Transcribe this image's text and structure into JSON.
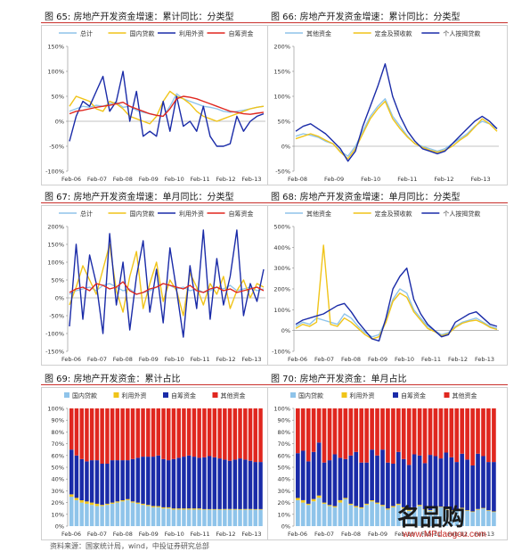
{
  "source": "资料来源：国家统计局，wind，中投证券研究总部",
  "watermark": {
    "brand": "名品购",
    "url": "www.MPdaogou.com"
  },
  "figures": [
    {
      "label": "图 65: 房地产开发资金增速：累计同比：分类型"
    },
    {
      "label": "图 66: 房地产开发资金增速：累计同比：分类型"
    },
    {
      "label": "图 67: 房地产开发资金增速：单月同比：分类型"
    },
    {
      "label": "图 68: 房地产开发资金增速：单月同比：分类型"
    },
    {
      "label": "图 69: 房地产开发资金：累计占比"
    },
    {
      "label": "图 70: 房地产开发资金：单月占比"
    }
  ],
  "chart_data": [
    {
      "type": "line",
      "title": "",
      "x_ticks": [
        "Feb-06",
        "Feb-07",
        "Feb-08",
        "Feb-09",
        "Feb-10",
        "Feb-11",
        "Feb-12",
        "Feb-13"
      ],
      "y_ticks": [
        -100,
        -50,
        0,
        50,
        100,
        150
      ],
      "ylim": [
        -100,
        150
      ],
      "legend_position": "top",
      "colors": [
        "#8fc4ea",
        "#f0c419",
        "#1a2ba8",
        "#e0271f"
      ],
      "series": [
        {
          "name": "总计",
          "values": [
            20,
            25,
            30,
            28,
            32,
            30,
            35,
            38,
            28,
            30,
            22,
            18,
            15,
            12,
            10,
            30,
            55,
            45,
            40,
            35,
            30,
            28,
            25,
            20,
            18,
            20,
            22,
            25,
            28,
            30
          ]
        },
        {
          "name": "国内贷款",
          "values": [
            30,
            50,
            45,
            40,
            25,
            20,
            40,
            35,
            25,
            10,
            5,
            0,
            -5,
            10,
            40,
            60,
            50,
            45,
            35,
            20,
            10,
            5,
            0,
            5,
            10,
            15,
            20,
            25,
            28,
            30
          ]
        },
        {
          "name": "利用外资",
          "values": [
            -40,
            10,
            40,
            30,
            60,
            90,
            20,
            40,
            100,
            0,
            60,
            -30,
            -20,
            -30,
            40,
            -20,
            50,
            -10,
            0,
            -20,
            30,
            -30,
            -50,
            -50,
            -45,
            10,
            -20,
            0,
            10,
            15
          ]
        },
        {
          "name": "自筹资金",
          "values": [
            15,
            20,
            22,
            25,
            28,
            30,
            32,
            35,
            38,
            30,
            25,
            20,
            15,
            12,
            10,
            25,
            45,
            50,
            48,
            45,
            40,
            35,
            30,
            25,
            20,
            18,
            15,
            14,
            16,
            18
          ]
        }
      ]
    },
    {
      "type": "line",
      "title": "",
      "x_ticks": [
        "Feb-08",
        "Feb-09",
        "Feb-10",
        "Feb-11",
        "Feb-12",
        "Feb-13"
      ],
      "y_ticks": [
        -50,
        0,
        50,
        100,
        150,
        200
      ],
      "ylim": [
        -50,
        200
      ],
      "legend_position": "top",
      "colors": [
        "#8fc4ea",
        "#f0c419",
        "#1a2ba8"
      ],
      "series": [
        {
          "name": "其他资金",
          "values": [
            20,
            25,
            22,
            18,
            10,
            5,
            -10,
            -20,
            0,
            30,
            60,
            80,
            95,
            60,
            40,
            20,
            5,
            0,
            -5,
            -10,
            -5,
            5,
            15,
            25,
            40,
            50,
            45,
            35
          ]
        },
        {
          "name": "定金及预收款",
          "values": [
            15,
            20,
            25,
            20,
            12,
            5,
            -12,
            -25,
            -5,
            25,
            55,
            75,
            90,
            55,
            35,
            18,
            5,
            -2,
            -8,
            -12,
            -8,
            0,
            12,
            22,
            38,
            55,
            45,
            30
          ]
        },
        {
          "name": "个人按揭贷款",
          "values": [
            30,
            40,
            45,
            35,
            25,
            10,
            -5,
            -30,
            -10,
            40,
            80,
            120,
            165,
            100,
            60,
            30,
            10,
            -5,
            -10,
            -15,
            -10,
            5,
            20,
            35,
            50,
            60,
            50,
            35
          ]
        }
      ]
    },
    {
      "type": "line",
      "title": "",
      "x_ticks": [
        "Feb-06",
        "Feb-07",
        "Feb-08",
        "Feb-09",
        "Feb-10",
        "Feb-11",
        "Feb-12",
        "Feb-13"
      ],
      "y_ticks": [
        -150,
        -100,
        -50,
        0,
        50,
        100,
        150,
        200
      ],
      "ylim": [
        -150,
        200
      ],
      "legend_position": "top",
      "colors": [
        "#8fc4ea",
        "#f0c419",
        "#1a2ba8",
        "#e0271f"
      ],
      "series": [
        {
          "name": "总计",
          "values": [
            10,
            20,
            25,
            30,
            20,
            35,
            40,
            30,
            20,
            25,
            10,
            15,
            20,
            30,
            40,
            35,
            25,
            30,
            20,
            25,
            15,
            20,
            30,
            25,
            35,
            20,
            25,
            30,
            20,
            25
          ]
        },
        {
          "name": "国内贷款",
          "values": [
            -20,
            30,
            90,
            50,
            10,
            80,
            150,
            20,
            -40,
            60,
            130,
            -30,
            40,
            100,
            -10,
            50,
            20,
            -50,
            70,
            30,
            -20,
            40,
            10,
            60,
            -30,
            20,
            50,
            0,
            40,
            30
          ]
        },
        {
          "name": "利用外资",
          "values": [
            -80,
            150,
            -60,
            120,
            40,
            -100,
            180,
            -20,
            100,
            -90,
            60,
            160,
            -40,
            80,
            -70,
            140,
            20,
            -110,
            90,
            -30,
            190,
            -60,
            110,
            -20,
            60,
            190,
            -50,
            40,
            -10,
            80
          ]
        },
        {
          "name": "自筹资金",
          "values": [
            15,
            25,
            30,
            20,
            40,
            35,
            25,
            30,
            45,
            20,
            10,
            15,
            25,
            30,
            40,
            35,
            30,
            25,
            35,
            20,
            15,
            25,
            30,
            20,
            25,
            15,
            20,
            25,
            30,
            20
          ]
        }
      ]
    },
    {
      "type": "line",
      "title": "",
      "x_ticks": [
        "Feb-06",
        "Feb-07",
        "Feb-08",
        "Feb-09",
        "Feb-10",
        "Feb-11",
        "Feb-12",
        "Feb-13"
      ],
      "y_ticks": [
        -100,
        0,
        100,
        200,
        300,
        400,
        500
      ],
      "ylim": [
        -100,
        500
      ],
      "legend_position": "top",
      "colors": [
        "#8fc4ea",
        "#f0c419",
        "#1a2ba8"
      ],
      "series": [
        {
          "name": "其他资金",
          "values": [
            20,
            40,
            30,
            60,
            50,
            40,
            30,
            80,
            60,
            20,
            -10,
            -30,
            -20,
            50,
            150,
            200,
            180,
            100,
            60,
            20,
            0,
            -20,
            -10,
            20,
            40,
            50,
            60,
            40,
            20,
            10
          ]
        },
        {
          "name": "定金及预收款",
          "values": [
            10,
            30,
            20,
            40,
            410,
            30,
            20,
            60,
            40,
            10,
            -20,
            -40,
            -30,
            40,
            140,
            180,
            160,
            90,
            50,
            10,
            -5,
            -25,
            -15,
            15,
            35,
            45,
            50,
            35,
            15,
            5
          ]
        },
        {
          "name": "个人按揭贷款",
          "values": [
            30,
            50,
            60,
            70,
            80,
            100,
            120,
            130,
            90,
            40,
            0,
            -40,
            -50,
            60,
            200,
            260,
            300,
            150,
            80,
            30,
            0,
            -30,
            -20,
            40,
            60,
            80,
            90,
            60,
            30,
            20
          ]
        }
      ]
    },
    {
      "type": "bar",
      "stacked": true,
      "title": "",
      "x_ticks": [
        "Feb-06",
        "Feb-07",
        "Feb-08",
        "Feb-09",
        "Feb-10",
        "Feb-11",
        "Feb-12",
        "Feb-13"
      ],
      "y_ticks": [
        "0%",
        "10%",
        "20%",
        "30%",
        "40%",
        "50%",
        "60%",
        "70%",
        "80%",
        "90%",
        "100%"
      ],
      "ylim": [
        0,
        100
      ],
      "legend_position": "top",
      "colors": [
        "#8fc4ea",
        "#f0c419",
        "#1a2ba8",
        "#e0271f"
      ],
      "series": [
        {
          "name": "国内贷款",
          "values": [
            25,
            22,
            20,
            19,
            18,
            17,
            17,
            18,
            19,
            20,
            21,
            22,
            20,
            19,
            18,
            17,
            16,
            16,
            15,
            15,
            14,
            14,
            14,
            14,
            14,
            14,
            14,
            14,
            14,
            14,
            14,
            14,
            14,
            14,
            14,
            14,
            14,
            14
          ]
        },
        {
          "name": "利用外资",
          "values": [
            2,
            2,
            2,
            2,
            2,
            2,
            1,
            1,
            1,
            1,
            1,
            1,
            1,
            1,
            1,
            1,
            1,
            1,
            1,
            1,
            1,
            1,
            1,
            1,
            1,
            1,
            0.5,
            0.5,
            0.5,
            0.5,
            0.5,
            0.5,
            0.5,
            0.5,
            0.5,
            0.5,
            0.5,
            0.5
          ]
        },
        {
          "name": "自筹资金",
          "values": [
            38,
            36,
            35,
            34,
            36,
            37,
            35,
            34,
            36,
            35,
            34,
            33,
            36,
            38,
            40,
            41,
            42,
            43,
            41,
            40,
            42,
            43,
            44,
            45,
            44,
            43,
            44,
            45,
            44,
            43,
            42,
            41,
            42,
            43,
            42,
            41,
            40,
            40
          ]
        },
        {
          "name": "其他资金",
          "values": [
            35,
            40,
            43,
            45,
            44,
            44,
            47,
            47,
            44,
            44,
            44,
            44,
            43,
            42,
            41,
            41,
            41,
            40,
            43,
            44,
            43,
            42,
            41,
            40,
            41,
            42,
            41.5,
            40.5,
            41.5,
            42.5,
            43.5,
            44.5,
            43.5,
            42.5,
            43.5,
            44.5,
            45.5,
            45.5
          ]
        }
      ]
    },
    {
      "type": "bar",
      "stacked": true,
      "title": "",
      "x_ticks": [
        "Feb-06",
        "Feb-07",
        "Feb-08",
        "Feb-09",
        "Feb-10",
        "Feb-11",
        "Feb-12",
        "Feb-13"
      ],
      "y_ticks": [
        "0%",
        "10%",
        "20%",
        "30%",
        "40%",
        "50%",
        "60%",
        "70%",
        "80%",
        "90%",
        "100%"
      ],
      "ylim": [
        0,
        100
      ],
      "legend_position": "top",
      "colors": [
        "#8fc4ea",
        "#f0c419",
        "#1a2ba8",
        "#e0271f"
      ],
      "series": [
        {
          "name": "国内贷款",
          "values": [
            22,
            20,
            18,
            21,
            24,
            19,
            17,
            16,
            20,
            23,
            18,
            16,
            15,
            18,
            21,
            19,
            17,
            14,
            16,
            18,
            15,
            13,
            15,
            17,
            14,
            13,
            15,
            16,
            14,
            13,
            14,
            15,
            13,
            12,
            14,
            15,
            13,
            12
          ]
        },
        {
          "name": "利用外资",
          "values": [
            2,
            2,
            1,
            2,
            2,
            1,
            1,
            1,
            2,
            1,
            1,
            1,
            1,
            1,
            1,
            1,
            1,
            1,
            1,
            1,
            1,
            1,
            1,
            1,
            0.5,
            0.5,
            0.5,
            0.5,
            0.5,
            0.5,
            0.5,
            0.5,
            0.5,
            0.5,
            0.5,
            0.5,
            0.5,
            0.5
          ]
        },
        {
          "name": "自筹资金",
          "values": [
            38,
            42,
            36,
            40,
            45,
            34,
            38,
            44,
            36,
            33,
            41,
            46,
            38,
            35,
            43,
            40,
            47,
            39,
            36,
            44,
            41,
            38,
            45,
            42,
            39,
            47,
            44,
            41,
            48,
            45,
            40,
            46,
            43,
            39,
            47,
            44,
            41,
            42
          ]
        },
        {
          "name": "其他资金",
          "values": [
            38,
            36,
            45,
            37,
            29,
            46,
            44,
            39,
            42,
            43,
            40,
            37,
            46,
            46,
            35,
            40,
            35,
            46,
            47,
            37,
            43,
            48,
            39,
            40,
            46.5,
            39.5,
            40.5,
            42.5,
            37.5,
            41.5,
            45.5,
            38.5,
            43.5,
            48.5,
            38.5,
            40.5,
            45.5,
            45.5
          ]
        }
      ]
    }
  ]
}
